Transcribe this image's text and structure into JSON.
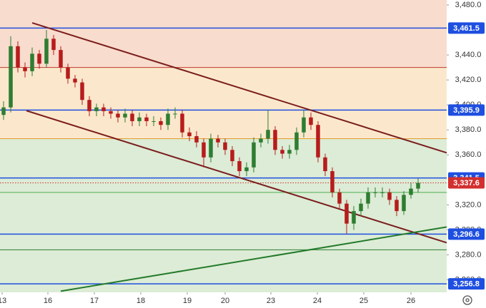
{
  "chart_data": {
    "type": "candlestick",
    "x": [
      1,
      3,
      5,
      7,
      9,
      11,
      13,
      15,
      17,
      19,
      21,
      23,
      25,
      27,
      29,
      31,
      33,
      35,
      37,
      39,
      41,
      43,
      45,
      47,
      49,
      51,
      53,
      55,
      57,
      59,
      61,
      63,
      65,
      67,
      69,
      71,
      73,
      75,
      77,
      79,
      81,
      83,
      85,
      87,
      89,
      91,
      93,
      95,
      97,
      99,
      101,
      103,
      105,
      107,
      109,
      111,
      113,
      115,
      117
    ],
    "open": [
      3392,
      3398,
      3447,
      3430,
      3427,
      3441,
      3433,
      3453,
      3444,
      3430,
      3421,
      3418,
      3404,
      3395,
      3398,
      3395,
      3393,
      3390,
      3393,
      3387,
      3390,
      3387,
      3387,
      3384,
      3393,
      3393,
      3378,
      3375,
      3370,
      3358,
      3373,
      3370,
      3364,
      3355,
      3347,
      3350,
      3370,
      3373,
      3380,
      3364,
      3361,
      3364,
      3378,
      3390,
      3384,
      3358,
      3347,
      3330,
      3321,
      3305,
      3315,
      3321,
      3330,
      3330,
      3330,
      3324,
      3315,
      3328,
      3333
    ],
    "high": [
      3403,
      3455,
      3451,
      3434,
      3446,
      3444,
      3460,
      3456,
      3447,
      3433,
      3424,
      3421,
      3407,
      3401,
      3401,
      3398,
      3396,
      3397,
      3396,
      3394,
      3393,
      3391,
      3390,
      3397,
      3398,
      3396,
      3382,
      3379,
      3373,
      3377,
      3376,
      3373,
      3367,
      3358,
      3354,
      3374,
      3377,
      3396,
      3383,
      3367,
      3368,
      3382,
      3396,
      3394,
      3387,
      3361,
      3350,
      3333,
      3324,
      3319,
      3325,
      3334,
      3334,
      3334,
      3333,
      3327,
      3331,
      3338,
      3341
    ],
    "low": [
      3388,
      3394,
      3426,
      3422,
      3423,
      3429,
      3430,
      3440,
      3426,
      3417,
      3414,
      3400,
      3391,
      3391,
      3391,
      3389,
      3386,
      3386,
      3383,
      3383,
      3383,
      3383,
      3380,
      3380,
      3389,
      3374,
      3371,
      3366,
      3350,
      3354,
      3366,
      3360,
      3351,
      3343,
      3343,
      3346,
      3366,
      3369,
      3360,
      3357,
      3357,
      3360,
      3374,
      3380,
      3354,
      3343,
      3326,
      3317,
      3297,
      3300,
      3311,
      3317,
      3326,
      3326,
      3320,
      3311,
      3312,
      3325,
      3330
    ],
    "close": [
      3398,
      3447,
      3430,
      3427,
      3441,
      3433,
      3453,
      3444,
      3430,
      3421,
      3418,
      3404,
      3395,
      3398,
      3395,
      3393,
      3390,
      3393,
      3387,
      3390,
      3387,
      3387,
      3384,
      3393,
      3393,
      3378,
      3375,
      3370,
      3358,
      3373,
      3370,
      3364,
      3355,
      3347,
      3350,
      3370,
      3373,
      3380,
      3364,
      3361,
      3364,
      3378,
      3390,
      3384,
      3358,
      3347,
      3330,
      3321,
      3305,
      3315,
      3321,
      3330,
      3330,
      3330,
      3324,
      3315,
      3328,
      3333,
      3337.6
    ],
    "up_color": "#2e7d32",
    "down_color": "#b71c1c",
    "xlim": [
      0,
      125
    ],
    "ylim": [
      3250,
      3484
    ],
    "xticks": [
      {
        "value": 0.6,
        "label": "13"
      },
      {
        "value": 13.4,
        "label": "16"
      },
      {
        "value": 26.4,
        "label": "17"
      },
      {
        "value": 39.4,
        "label": "18"
      },
      {
        "value": 52.4,
        "label": "19"
      },
      {
        "value": 63,
        "label": "20"
      },
      {
        "value": 75.8,
        "label": "23"
      },
      {
        "value": 88.8,
        "label": "24"
      },
      {
        "value": 101.8,
        "label": "25"
      },
      {
        "value": 115,
        "label": "26"
      }
    ],
    "yticks": [
      {
        "value": 3480,
        "label": "3,480.0"
      },
      {
        "value": 3440,
        "label": "3,440.0"
      },
      {
        "value": 3420,
        "label": "3,420.0"
      },
      {
        "value": 3400,
        "label": "3,400.0"
      },
      {
        "value": 3380,
        "label": "3,380.0"
      },
      {
        "value": 3360,
        "label": "3,360.0"
      },
      {
        "value": 3320,
        "label": "3,320.0"
      },
      {
        "value": 3300,
        "label": "3,300.0"
      },
      {
        "value": 3280,
        "label": "3,280.0"
      },
      {
        "value": 3260,
        "label": "3,260.0"
      }
    ],
    "zones": [
      {
        "from": 3430,
        "to": 3484,
        "color": "#f8dccd"
      },
      {
        "from": 3373,
        "to": 3430,
        "color": "#fbe8cc"
      },
      {
        "from": 3250,
        "to": 3373,
        "color": "#dcecd6"
      }
    ],
    "levels": [
      {
        "value": 3461.5,
        "label": "3,461.5",
        "color": "#1e4fe0"
      },
      {
        "value": 3430,
        "color": "#c0392b"
      },
      {
        "value": 3395.9,
        "label": "3,395.9",
        "color": "#1e4fe0"
      },
      {
        "value": 3373,
        "color": "#e69a2e"
      },
      {
        "value": 3341.5,
        "label": "3,341.5",
        "color": "#1e4fe0"
      },
      {
        "value": 3337.6,
        "label": "3,337.6",
        "color": "#d32f2f",
        "style": "dotted"
      },
      {
        "value": 3330,
        "color": "#4caf50"
      },
      {
        "value": 3296.6,
        "label": "3,296.6",
        "color": "#1e4fe0"
      },
      {
        "value": 3284,
        "color": "#2e7d32"
      },
      {
        "value": 3256.8,
        "label": "3,256.8",
        "color": "#1e4fe0"
      }
    ],
    "trendlines": [
      {
        "x": [
          9,
          125
        ],
        "y": [
          3465.7,
          3361.7
        ],
        "color": "#7b1e1e"
      },
      {
        "x": [
          7.4,
          125
        ],
        "y": [
          3395.4,
          3289.7
        ],
        "color": "#7b1e1e"
      },
      {
        "x": [
          17,
          125
        ],
        "y": [
          3250.9,
          3302.3
        ],
        "color": "#237a2a"
      }
    ]
  }
}
